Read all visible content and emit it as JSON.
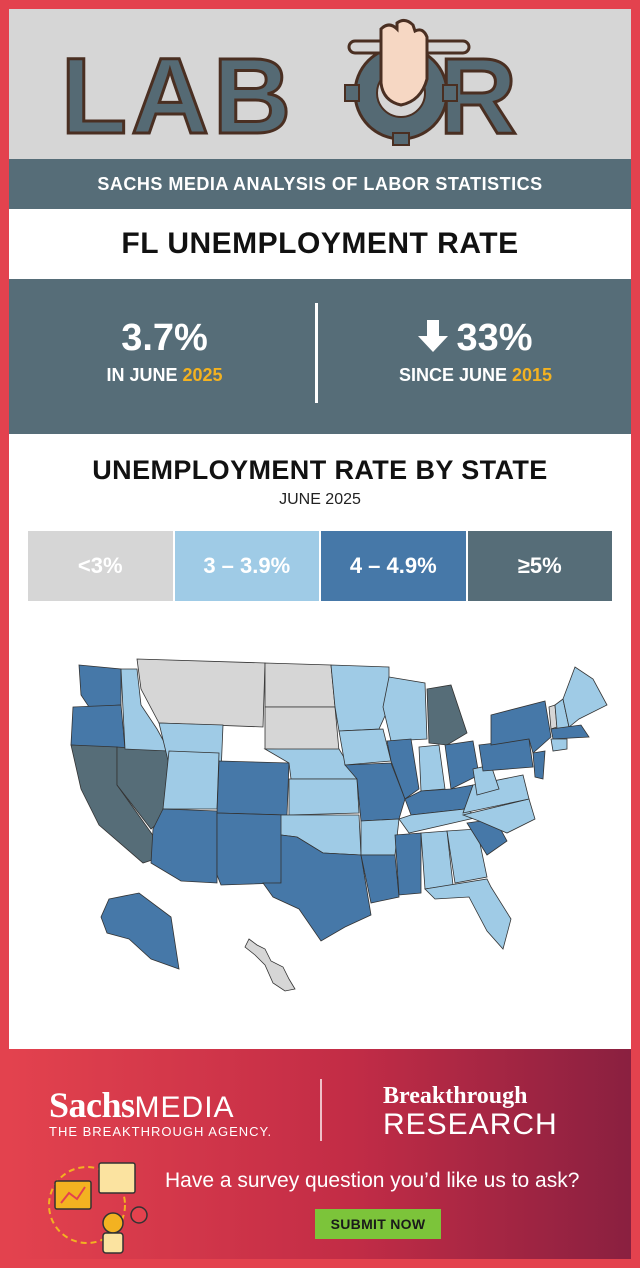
{
  "header": {
    "logo_text": "LABOR",
    "subtitle": "SACHS MEDIA ANALYSIS OF LABOR STATISTICS"
  },
  "title": "FL UNEMPLOYMENT RATE",
  "stats": {
    "left": {
      "value": "3.7%",
      "label_prefix": "IN JUNE ",
      "label_year": "2025"
    },
    "right": {
      "value": "33%",
      "direction_icon": "arrow-down-icon",
      "label_prefix": "SINCE JUNE ",
      "label_year": "2015"
    }
  },
  "map": {
    "title": "UNEMPLOYMENT RATE BY STATE",
    "subtitle": "JUNE 2025",
    "legend": [
      {
        "label": "<3%",
        "color": "#d6d6d6"
      },
      {
        "label": "3 – 3.9%",
        "color": "#9fcbe6"
      },
      {
        "label": "4 – 4.9%",
        "color": "#4678a8"
      },
      {
        "label": "≥5%",
        "color": "#566d78"
      }
    ]
  },
  "footer": {
    "brand1_name": "Sachs",
    "brand1_media": "MEDIA",
    "brand1_tagline": "THE BREAKTHROUGH AGENCY.",
    "brand2_line1": "Breakthrough",
    "brand2_line2": "RESEARCH",
    "question": "Have a survey question you’d like us to ask?",
    "cta": "SUBMIT NOW"
  },
  "colors": {
    "accent_red": "#e3424e",
    "slate": "#566d78",
    "gold": "#f3b221",
    "green": "#7cc43a"
  }
}
